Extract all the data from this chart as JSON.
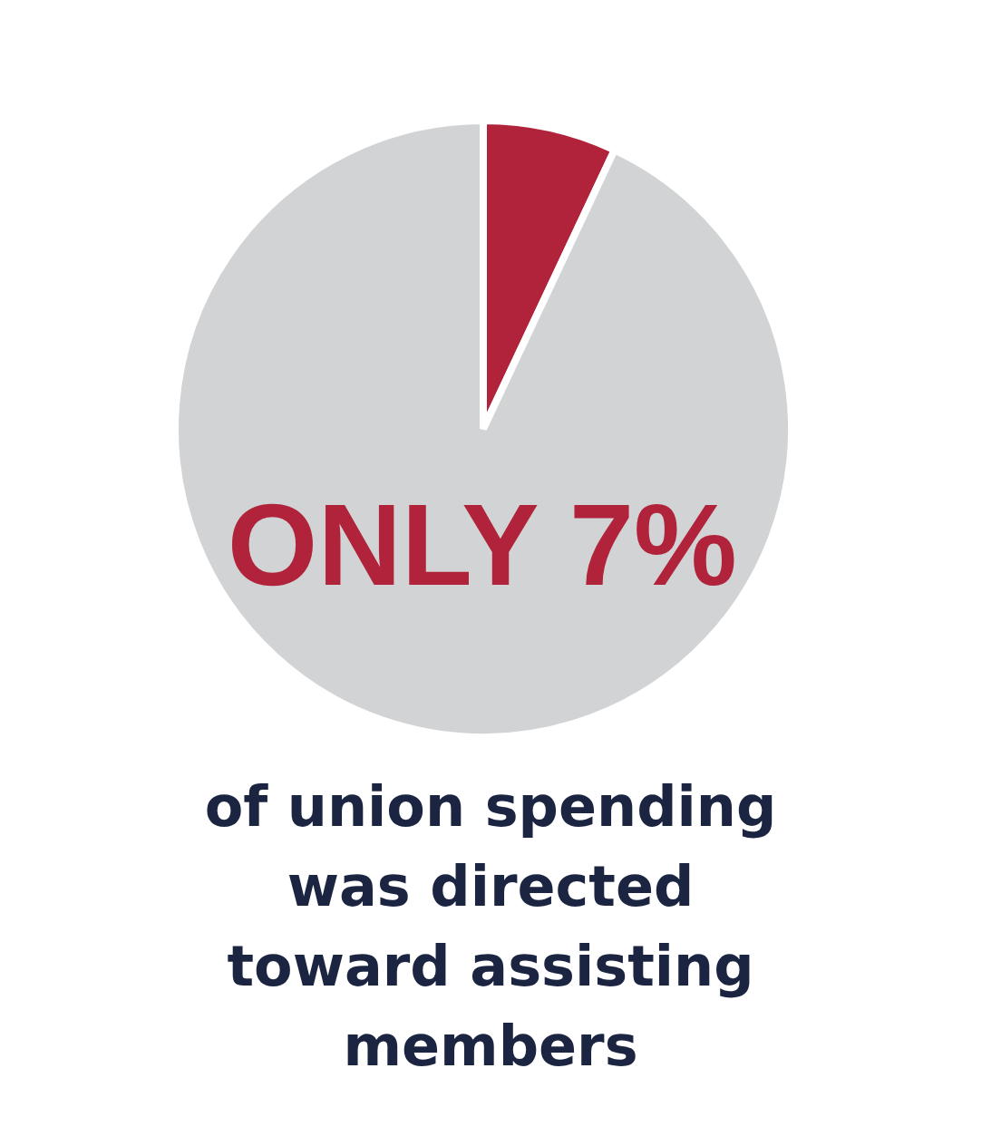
{
  "chart_data": {
    "type": "pie",
    "categories": [
      null,
      null
    ],
    "values": [
      7,
      93
    ],
    "colors": [
      "#b0233a",
      "#d1d3d4"
    ],
    "annotations": [
      "ONLY 7%",
      "of union spending was directed toward assisting members"
    ]
  }
}
